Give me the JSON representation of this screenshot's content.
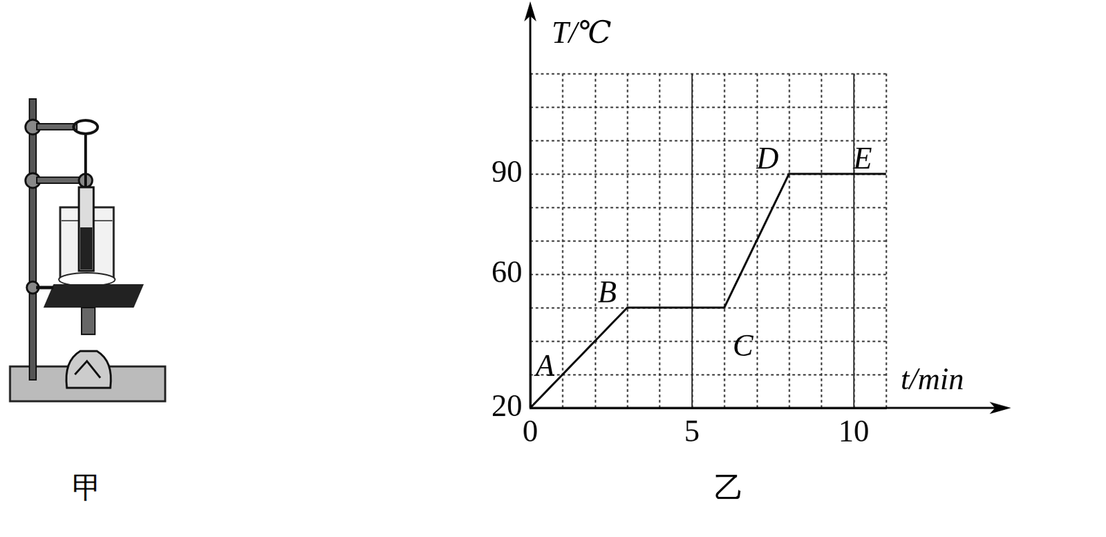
{
  "chart_data": {
    "type": "line",
    "x_label": "t/min",
    "y_label": "T/℃",
    "caption": "乙",
    "x": [
      0,
      3,
      6,
      8,
      11
    ],
    "values": [
      20,
      50,
      50,
      90,
      90
    ],
    "point_labels": [
      "A",
      "B",
      "C",
      "D",
      "E"
    ],
    "color": "#000000",
    "xlim": [
      0,
      11
    ],
    "xticks": [
      0,
      5,
      10
    ],
    "ylim": [
      20,
      120
    ],
    "yticks": [
      20,
      60,
      90
    ],
    "grid": true
  },
  "apparatus": {
    "caption": "甲"
  }
}
